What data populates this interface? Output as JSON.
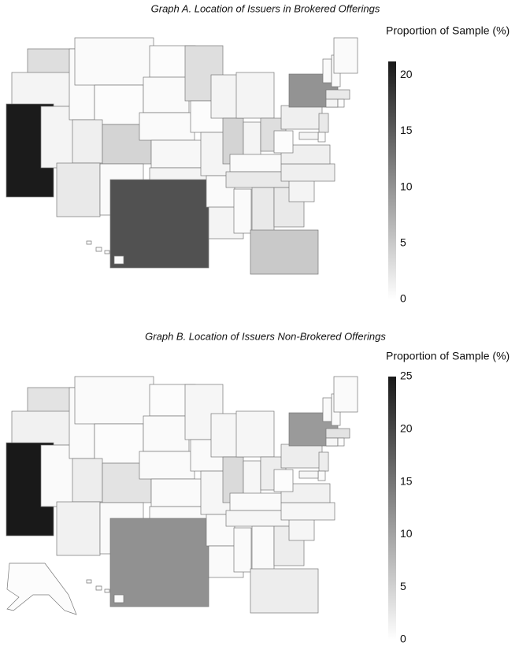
{
  "chart_data": [
    {
      "type": "choropleth",
      "title": "Graph A. Location of Issuers in Brokered Offerings",
      "colorbar_label": "Proportion of Sample (%)",
      "ylim": [
        0,
        21.2
      ],
      "yticks": [
        0,
        5,
        10,
        15,
        20
      ],
      "values": [
        3,
        1,
        21,
        1,
        0.5,
        0.5,
        0.3,
        1.5,
        2,
        4,
        0.5,
        0.3,
        0.5,
        0.5,
        0.7,
        1,
        16,
        3,
        0.3,
        1,
        0.5,
        1,
        1,
        4,
        1,
        1,
        3,
        0.5,
        2,
        0.5,
        2,
        2,
        5,
        1,
        1.5,
        1.5,
        0.3,
        1.5,
        10,
        0.5,
        0.5,
        0.5,
        2,
        1,
        0.3,
        2,
        0.5,
        1,
        0.5
      ]
    },
    {
      "type": "choropleth",
      "title": "Graph B. Location of Issuers Non-Brokered Offerings",
      "colorbar_label": "Proportion of Sample (%)",
      "ylim": [
        0,
        25
      ],
      "yticks": [
        0,
        5,
        10,
        15,
        20,
        25
      ],
      "values": [
        3,
        1.5,
        25,
        0.5,
        0.5,
        0.5,
        0.3,
        2,
        1.5,
        3,
        0.5,
        0.3,
        0.5,
        0.5,
        0.5,
        0.5,
        12,
        1,
        0.5,
        1,
        0.5,
        0.5,
        1,
        4,
        1,
        1,
        2,
        0.5,
        1,
        0.5,
        0.5,
        2,
        2,
        1,
        1,
        1.5,
        0.3,
        2,
        11,
        0.5,
        0.5,
        0.5,
        3,
        1,
        0.3,
        2,
        0.5,
        1,
        0.5,
        0.3
      ]
    }
  ]
}
